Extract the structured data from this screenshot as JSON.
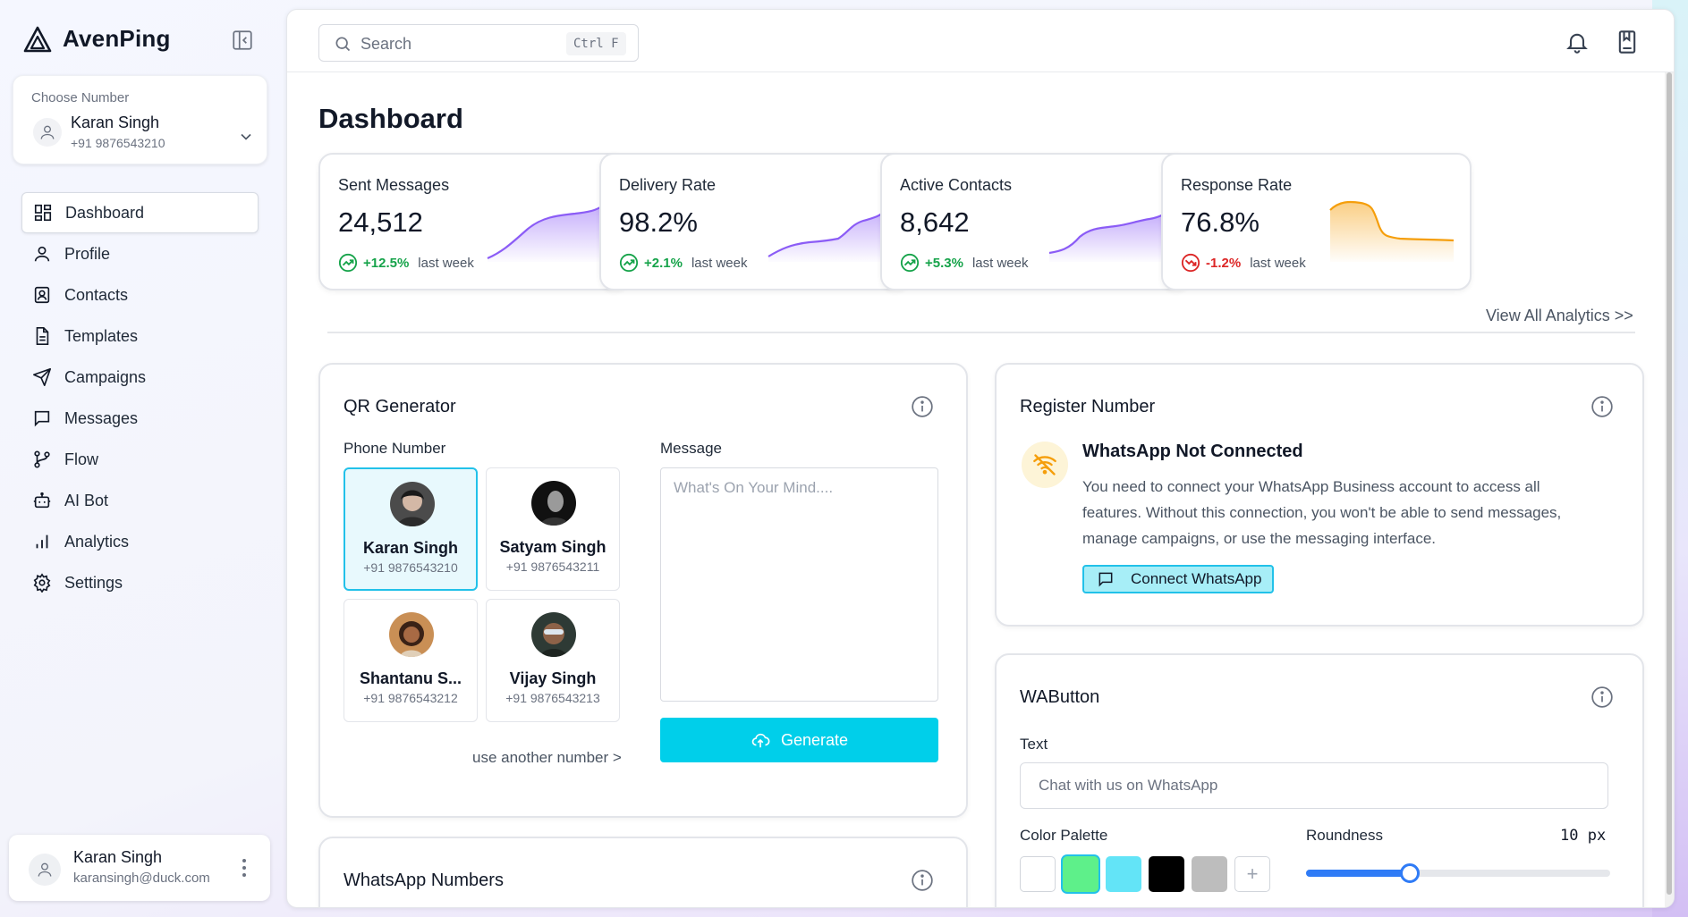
{
  "brand": {
    "name": "AvenPing"
  },
  "number_picker": {
    "label": "Choose Number",
    "name": "Karan Singh",
    "phone": "+91 9876543210"
  },
  "sidebar": {
    "items": [
      {
        "label": "Dashboard",
        "icon": "dashboard-icon",
        "active": true
      },
      {
        "label": "Profile",
        "icon": "user-icon"
      },
      {
        "label": "Contacts",
        "icon": "contacts-icon"
      },
      {
        "label": "Templates",
        "icon": "document-icon"
      },
      {
        "label": "Campaigns",
        "icon": "send-icon"
      },
      {
        "label": "Messages",
        "icon": "chat-icon"
      },
      {
        "label": "Flow",
        "icon": "git-branch-icon"
      },
      {
        "label": "AI Bot",
        "icon": "bot-icon"
      },
      {
        "label": "Analytics",
        "icon": "bar-chart-icon"
      },
      {
        "label": "Settings",
        "icon": "gear-icon"
      }
    ]
  },
  "user": {
    "name": "Karan Singh",
    "email": "karansingh@duck.com"
  },
  "search": {
    "placeholder": "Search",
    "shortcut": "Ctrl F"
  },
  "page": {
    "title": "Dashboard"
  },
  "stats": [
    {
      "label": "Sent Messages",
      "value": "24,512",
      "change": "+12.5%",
      "suffix": "last week",
      "direction": "up",
      "color": "#8b5cf6"
    },
    {
      "label": "Delivery Rate",
      "value": "98.2%",
      "change": "+2.1%",
      "suffix": "last week",
      "direction": "up",
      "color": "#8b5cf6"
    },
    {
      "label": "Active Contacts",
      "value": "8,642",
      "change": "+5.3%",
      "suffix": "last week",
      "direction": "up",
      "color": "#8b5cf6"
    },
    {
      "label": "Response Rate",
      "value": "76.8%",
      "change": "-1.2%",
      "suffix": "last week",
      "direction": "down",
      "color": "#f59e0b"
    }
  ],
  "analytics_link": "View All Analytics >>",
  "qr": {
    "title": "QR Generator",
    "phone_label": "Phone Number",
    "message_label": "Message",
    "message_placeholder": "What's On Your Mind....",
    "contacts": [
      {
        "name": "Karan Singh",
        "phone": "+91 9876543210",
        "selected": true
      },
      {
        "name": "Satyam Singh",
        "phone": "+91 9876543211"
      },
      {
        "name": "Shantanu S...",
        "phone": "+91 9876543212"
      },
      {
        "name": "Vijay Singh",
        "phone": "+91 9876543213"
      }
    ],
    "another": "use another number >",
    "generate": "Generate"
  },
  "register": {
    "title": "Register Number",
    "heading": "WhatsApp Not Connected",
    "text": "You need to connect your WhatsApp Business account to access all features. Without this connection, you won't be able to send messages, manage campaigns, or use the messaging interface.",
    "button": "Connect WhatsApp"
  },
  "wa_numbers": {
    "title": "WhatsApp Numbers"
  },
  "wabutton": {
    "title": "WAButton",
    "text_label": "Text",
    "text_placeholder": "Chat with us on WhatsApp",
    "palette_label": "Color Palette",
    "palette": [
      "#ffffff",
      "#5ef08a",
      "#63e4f7",
      "#000000",
      "#bdbdbd"
    ],
    "palette_selected": 1,
    "roundness_label": "Roundness",
    "roundness_value": "10 px",
    "roundness_fraction": 0.34
  },
  "colors": {
    "accent": "#00cfea",
    "up": "#16a34a",
    "down": "#dc2626"
  }
}
